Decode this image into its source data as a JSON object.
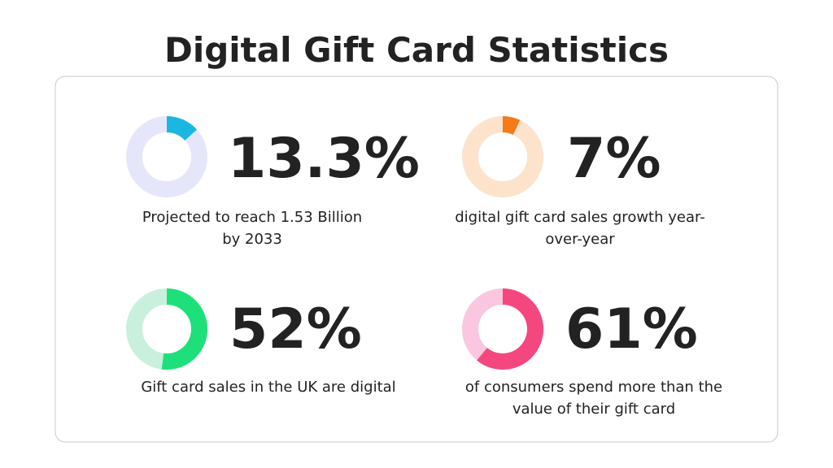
{
  "title": "Digital Gift Card Statistics",
  "stats": [
    {
      "value": 13.3,
      "value_label": "13.3%",
      "description": [
        "Projected to reach 1.53 Billion",
        "by 2033"
      ],
      "color": "#1ab8e0",
      "track_color": "#e6e6fa"
    },
    {
      "value": 7,
      "value_label": "7%",
      "description": [
        "digital gift card sales growth year-",
        "over-year"
      ],
      "color": "#f57b1a",
      "track_color": "#fde3cc"
    },
    {
      "value": 52,
      "value_label": "52%",
      "description": [
        "Gift card sales in the UK are digital"
      ],
      "color": "#1de07a",
      "track_color": "#c8f0dc"
    },
    {
      "value": 61,
      "value_label": "61%",
      "description": [
        "of consumers spend more than the",
        "value of their gift card"
      ],
      "color": "#f5477f",
      "track_color": "#fbc6df"
    }
  ]
}
